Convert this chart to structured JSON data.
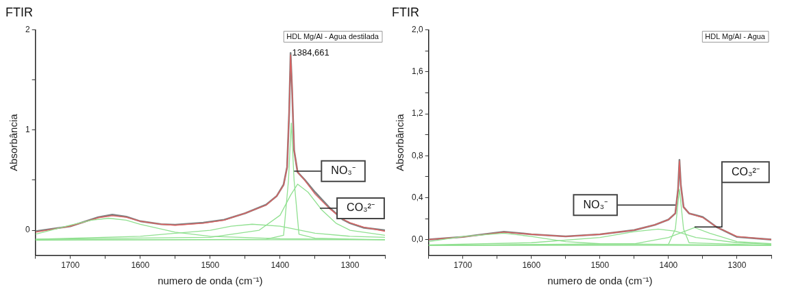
{
  "chart_data": [
    {
      "type": "line",
      "title": "FTIR",
      "xlabel": "numero de onda (cm⁻¹)",
      "ylabel": "Absorbância",
      "xlim": [
        1750,
        1250
      ],
      "ylim": [
        -0.25,
        2
      ],
      "xticks": [
        {
          "value": 1750,
          "label": null
        },
        1700,
        {
          "value": 1650,
          "label": null
        },
        1600,
        {
          "value": 1550,
          "label": null
        },
        1500,
        {
          "value": 1450,
          "label": null
        },
        1400,
        {
          "value": 1350,
          "label": null
        },
        1300,
        {
          "value": 1250,
          "label": null
        }
      ],
      "yticks": [
        0,
        {
          "value": 0.5,
          "label": null
        },
        1,
        {
          "value": 1.5,
          "label": null
        },
        2
      ],
      "grid": false,
      "legend": false,
      "marker": "none",
      "line_style": "solid",
      "series": [
        {
          "color": "#808080",
          "x": [
            1750,
            1700,
            1660,
            1640,
            1620,
            1600,
            1570,
            1550,
            1510,
            1480,
            1450,
            1420,
            1405,
            1395,
            1390,
            1387,
            1385,
            1383,
            1380,
            1375,
            1365,
            1350,
            1330,
            1310,
            1300,
            1280,
            1250
          ],
          "values": [
            -0.01,
            0.04,
            0.13,
            0.155,
            0.135,
            0.09,
            0.06,
            0.055,
            0.075,
            0.105,
            0.17,
            0.255,
            0.34,
            0.455,
            0.63,
            1.18,
            1.77,
            1.43,
            0.8,
            0.58,
            0.505,
            0.38,
            0.23,
            0.105,
            0.07,
            0.025,
            0
          ]
        },
        {
          "color": "#e06060",
          "x": [
            1750,
            1700,
            1660,
            1640,
            1620,
            1600,
            1570,
            1550,
            1510,
            1480,
            1450,
            1420,
            1405,
            1395,
            1390,
            1387,
            1385,
            1383,
            1380,
            1375,
            1365,
            1350,
            1330,
            1310,
            1300,
            1280,
            1250
          ],
          "values": [
            -0.02,
            0.04,
            0.125,
            0.145,
            0.13,
            0.09,
            0.06,
            0.05,
            0.07,
            0.1,
            0.17,
            0.25,
            0.34,
            0.45,
            0.63,
            1.2,
            1.75,
            1.45,
            0.8,
            0.58,
            0.5,
            0.36,
            0.22,
            0.11,
            0.075,
            0.03,
            -0.01
          ]
        },
        {
          "color": "#90e090",
          "x": [
            1750,
            1250
          ],
          "values": [
            -0.095,
            -0.095
          ]
        },
        {
          "color": "#90e090",
          "x": [
            1750,
            1700,
            1670,
            1645,
            1620,
            1600,
            1550,
            1500,
            1400,
            1250
          ],
          "values": [
            -0.04,
            0.05,
            0.1,
            0.12,
            0.1,
            0.06,
            -0.02,
            -0.06,
            -0.085,
            -0.095
          ]
        },
        {
          "color": "#90e090",
          "x": [
            1750,
            1600,
            1500,
            1470,
            1440,
            1400,
            1350,
            1300,
            1250
          ],
          "values": [
            -0.09,
            -0.06,
            0,
            0.04,
            0.06,
            0.04,
            -0.03,
            -0.06,
            -0.07
          ]
        },
        {
          "color": "#90e090",
          "x": [
            1750,
            1420,
            1395,
            1388,
            1384,
            1380,
            1373,
            1350,
            1250
          ],
          "values": [
            -0.1,
            -0.09,
            -0.05,
            0.5,
            1.07,
            0.5,
            -0.04,
            -0.08,
            -0.095
          ]
        },
        {
          "color": "#90e090",
          "x": [
            1750,
            1500,
            1430,
            1400,
            1385,
            1375,
            1360,
            1340,
            1320,
            1300,
            1250
          ],
          "values": [
            -0.09,
            -0.07,
            0,
            0.15,
            0.35,
            0.46,
            0.38,
            0.2,
            0.07,
            0,
            -0.05
          ]
        }
      ],
      "annotations": [
        "HDL Mg/Al - Agua destilada",
        {
          "text": "1384,661",
          "x": 1384.661,
          "y": 1.77
        },
        {
          "text": "NO₃⁻",
          "x": 1380,
          "y": 0.59
        },
        {
          "text": "CO₃²⁻",
          "x": 1343,
          "y": 0.22
        }
      ]
    },
    {
      "type": "line",
      "title": "FTIR",
      "xlabel": "numero de onda (cm⁻¹)",
      "ylabel": "Absorbância",
      "xlim": [
        1750,
        1250
      ],
      "ylim": [
        -0.15,
        2
      ],
      "xticks": [
        {
          "value": 1750,
          "label": null
        },
        1700,
        {
          "value": 1650,
          "label": null
        },
        1600,
        {
          "value": 1550,
          "label": null
        },
        1500,
        {
          "value": 1450,
          "label": null
        },
        1400,
        {
          "value": 1350,
          "label": null
        },
        1300,
        {
          "value": 1250,
          "label": null
        }
      ],
      "yticks": [
        {
          "value": 0,
          "label": "0,0"
        },
        {
          "value": 0.2,
          "label": null
        },
        {
          "value": 0.4,
          "label": "0,4"
        },
        {
          "value": 0.6,
          "label": null
        },
        {
          "value": 0.8,
          "label": "0,8"
        },
        {
          "value": 1,
          "label": null
        },
        {
          "value": 1.2,
          "label": "1,2"
        },
        {
          "value": 1.4,
          "label": null
        },
        {
          "value": 1.6,
          "label": "1,6"
        },
        {
          "value": 1.8,
          "label": null
        },
        {
          "value": 2,
          "label": "2,0"
        }
      ],
      "grid": false,
      "legend": false,
      "marker": "none",
      "line_style": "solid",
      "series": [
        {
          "color": "#808080",
          "x": [
            1750,
            1700,
            1640,
            1600,
            1550,
            1500,
            1450,
            1420,
            1400,
            1390,
            1386,
            1384,
            1382,
            1378,
            1370,
            1350,
            1330,
            1300,
            1250
          ],
          "values": [
            0,
            0.025,
            0.075,
            0.05,
            0.03,
            0.05,
            0.09,
            0.14,
            0.19,
            0.25,
            0.48,
            0.76,
            0.52,
            0.31,
            0.25,
            0.215,
            0.12,
            0.025,
            0
          ]
        },
        {
          "color": "#e06060",
          "x": [
            1750,
            1700,
            1640,
            1600,
            1550,
            1500,
            1450,
            1420,
            1400,
            1390,
            1386,
            1384,
            1382,
            1378,
            1370,
            1350,
            1330,
            1300,
            1250
          ],
          "values": [
            0,
            0.025,
            0.07,
            0.05,
            0.03,
            0.05,
            0.09,
            0.14,
            0.19,
            0.25,
            0.48,
            0.75,
            0.52,
            0.31,
            0.25,
            0.21,
            0.12,
            0.03,
            0
          ]
        },
        {
          "color": "#90e090",
          "x": [
            1750,
            1250
          ],
          "values": [
            -0.055,
            -0.055
          ]
        },
        {
          "color": "#90e090",
          "x": [
            1750,
            1700,
            1640,
            1600,
            1550,
            1500,
            1250
          ],
          "values": [
            -0.02,
            0.03,
            0.06,
            0.03,
            -0.02,
            -0.04,
            -0.055
          ]
        },
        {
          "color": "#90e090",
          "x": [
            1750,
            1600,
            1500,
            1450,
            1415,
            1390,
            1360,
            1300,
            1250
          ],
          "values": [
            -0.05,
            -0.03,
            0.02,
            0.075,
            0.1,
            0.08,
            0.02,
            -0.03,
            -0.045
          ]
        },
        {
          "color": "#90e090",
          "x": [
            1750,
            1400,
            1390,
            1384,
            1378,
            1370,
            1250
          ],
          "values": [
            -0.055,
            -0.045,
            0.1,
            0.48,
            0.1,
            -0.03,
            -0.055
          ]
        },
        {
          "color": "#90e090",
          "x": [
            1750,
            1450,
            1400,
            1362,
            1340,
            1300,
            1250
          ],
          "values": [
            -0.055,
            -0.04,
            0.02,
            0.115,
            0.06,
            -0.02,
            -0.04
          ]
        }
      ],
      "annotations": [
        "HDL Mg/Al - Agua",
        {
          "text": "NO₃⁻",
          "x": 1390,
          "y": 0.33
        },
        {
          "text": "CO₃²⁻",
          "x": 1362,
          "y": 0.12
        }
      ]
    }
  ]
}
